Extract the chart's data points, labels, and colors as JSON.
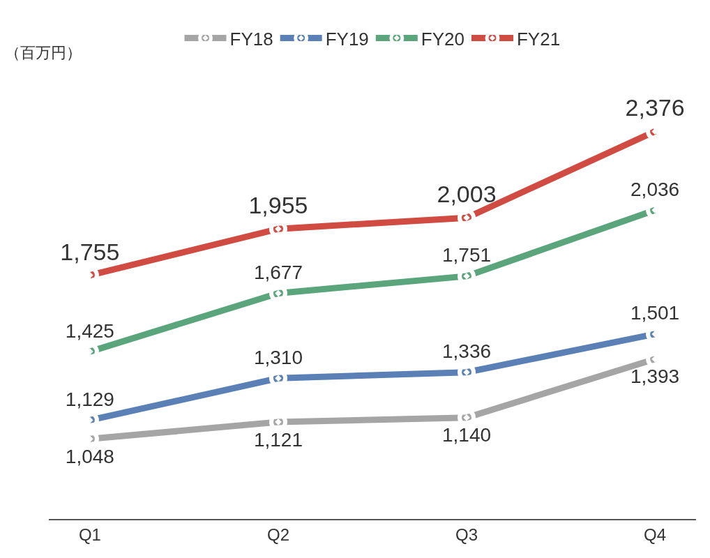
{
  "chart_data": {
    "type": "line",
    "ylabel": "（百万円）",
    "categories": [
      "Q1",
      "Q2",
      "Q3",
      "Q4"
    ],
    "series": [
      {
        "name": "FY18",
        "color": "#a5a5a5",
        "values": [
          1048,
          1121,
          1140,
          1393
        ],
        "value_labels": [
          "1,048",
          "1,121",
          "1,140",
          "1,393"
        ]
      },
      {
        "name": "FY19",
        "color": "#5b80b5",
        "values": [
          1129,
          1310,
          1336,
          1501
        ],
        "value_labels": [
          "1,129",
          "1,310",
          "1,336",
          "1,501"
        ]
      },
      {
        "name": "FY20",
        "color": "#5aa57c",
        "values": [
          1425,
          1677,
          1751,
          2036
        ],
        "value_labels": [
          "1,425",
          "1,677",
          "1,751",
          "2,036"
        ]
      },
      {
        "name": "FY21",
        "color": "#d04b41",
        "values": [
          1755,
          1955,
          2003,
          2376
        ],
        "value_labels": [
          "1,755",
          "1,955",
          "2,003",
          "2,376"
        ]
      }
    ],
    "tick_labels": "x",
    "grid": false,
    "legend": "top",
    "marker": "circle",
    "line_style": "solid"
  }
}
